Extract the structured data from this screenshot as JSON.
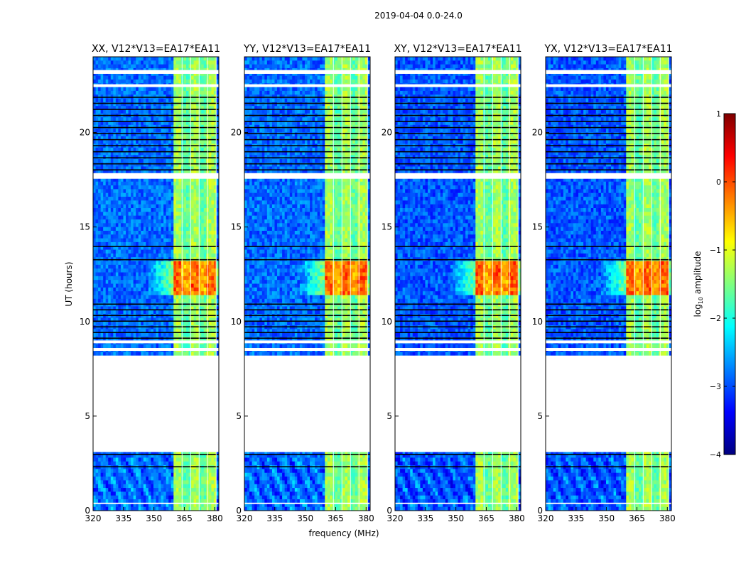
{
  "chart_data": {
    "type": "heatmap",
    "title": "2019-04-04 0.0-24.0",
    "xlabel": "frequency (MHz)",
    "ylabel": "UT (hours)",
    "xlim": [
      320,
      382
    ],
    "ylim": [
      0,
      24
    ],
    "xticks": [
      320,
      335,
      350,
      365,
      380
    ],
    "yticks": [
      0,
      5,
      10,
      15,
      20
    ],
    "panels": [
      {
        "title": "XX, V12*V13=EA17*EA11"
      },
      {
        "title": "YY, V12*V13=EA17*EA11"
      },
      {
        "title": "XY, V12*V13=EA17*EA11"
      },
      {
        "title": "YX, V12*V13=EA17*EA11"
      }
    ],
    "band_mhz": [
      359.5,
      380.5
    ],
    "strong_source_hours": [
      11.4,
      13.1
    ],
    "data_gap_hours": [
      3.1,
      8.2
    ],
    "colorbar": {
      "label": "log10 amplitude",
      "range": [
        -4,
        1
      ],
      "ticks": [
        -4,
        -3,
        -2,
        -1,
        0,
        1
      ],
      "colormap": "jet"
    }
  }
}
